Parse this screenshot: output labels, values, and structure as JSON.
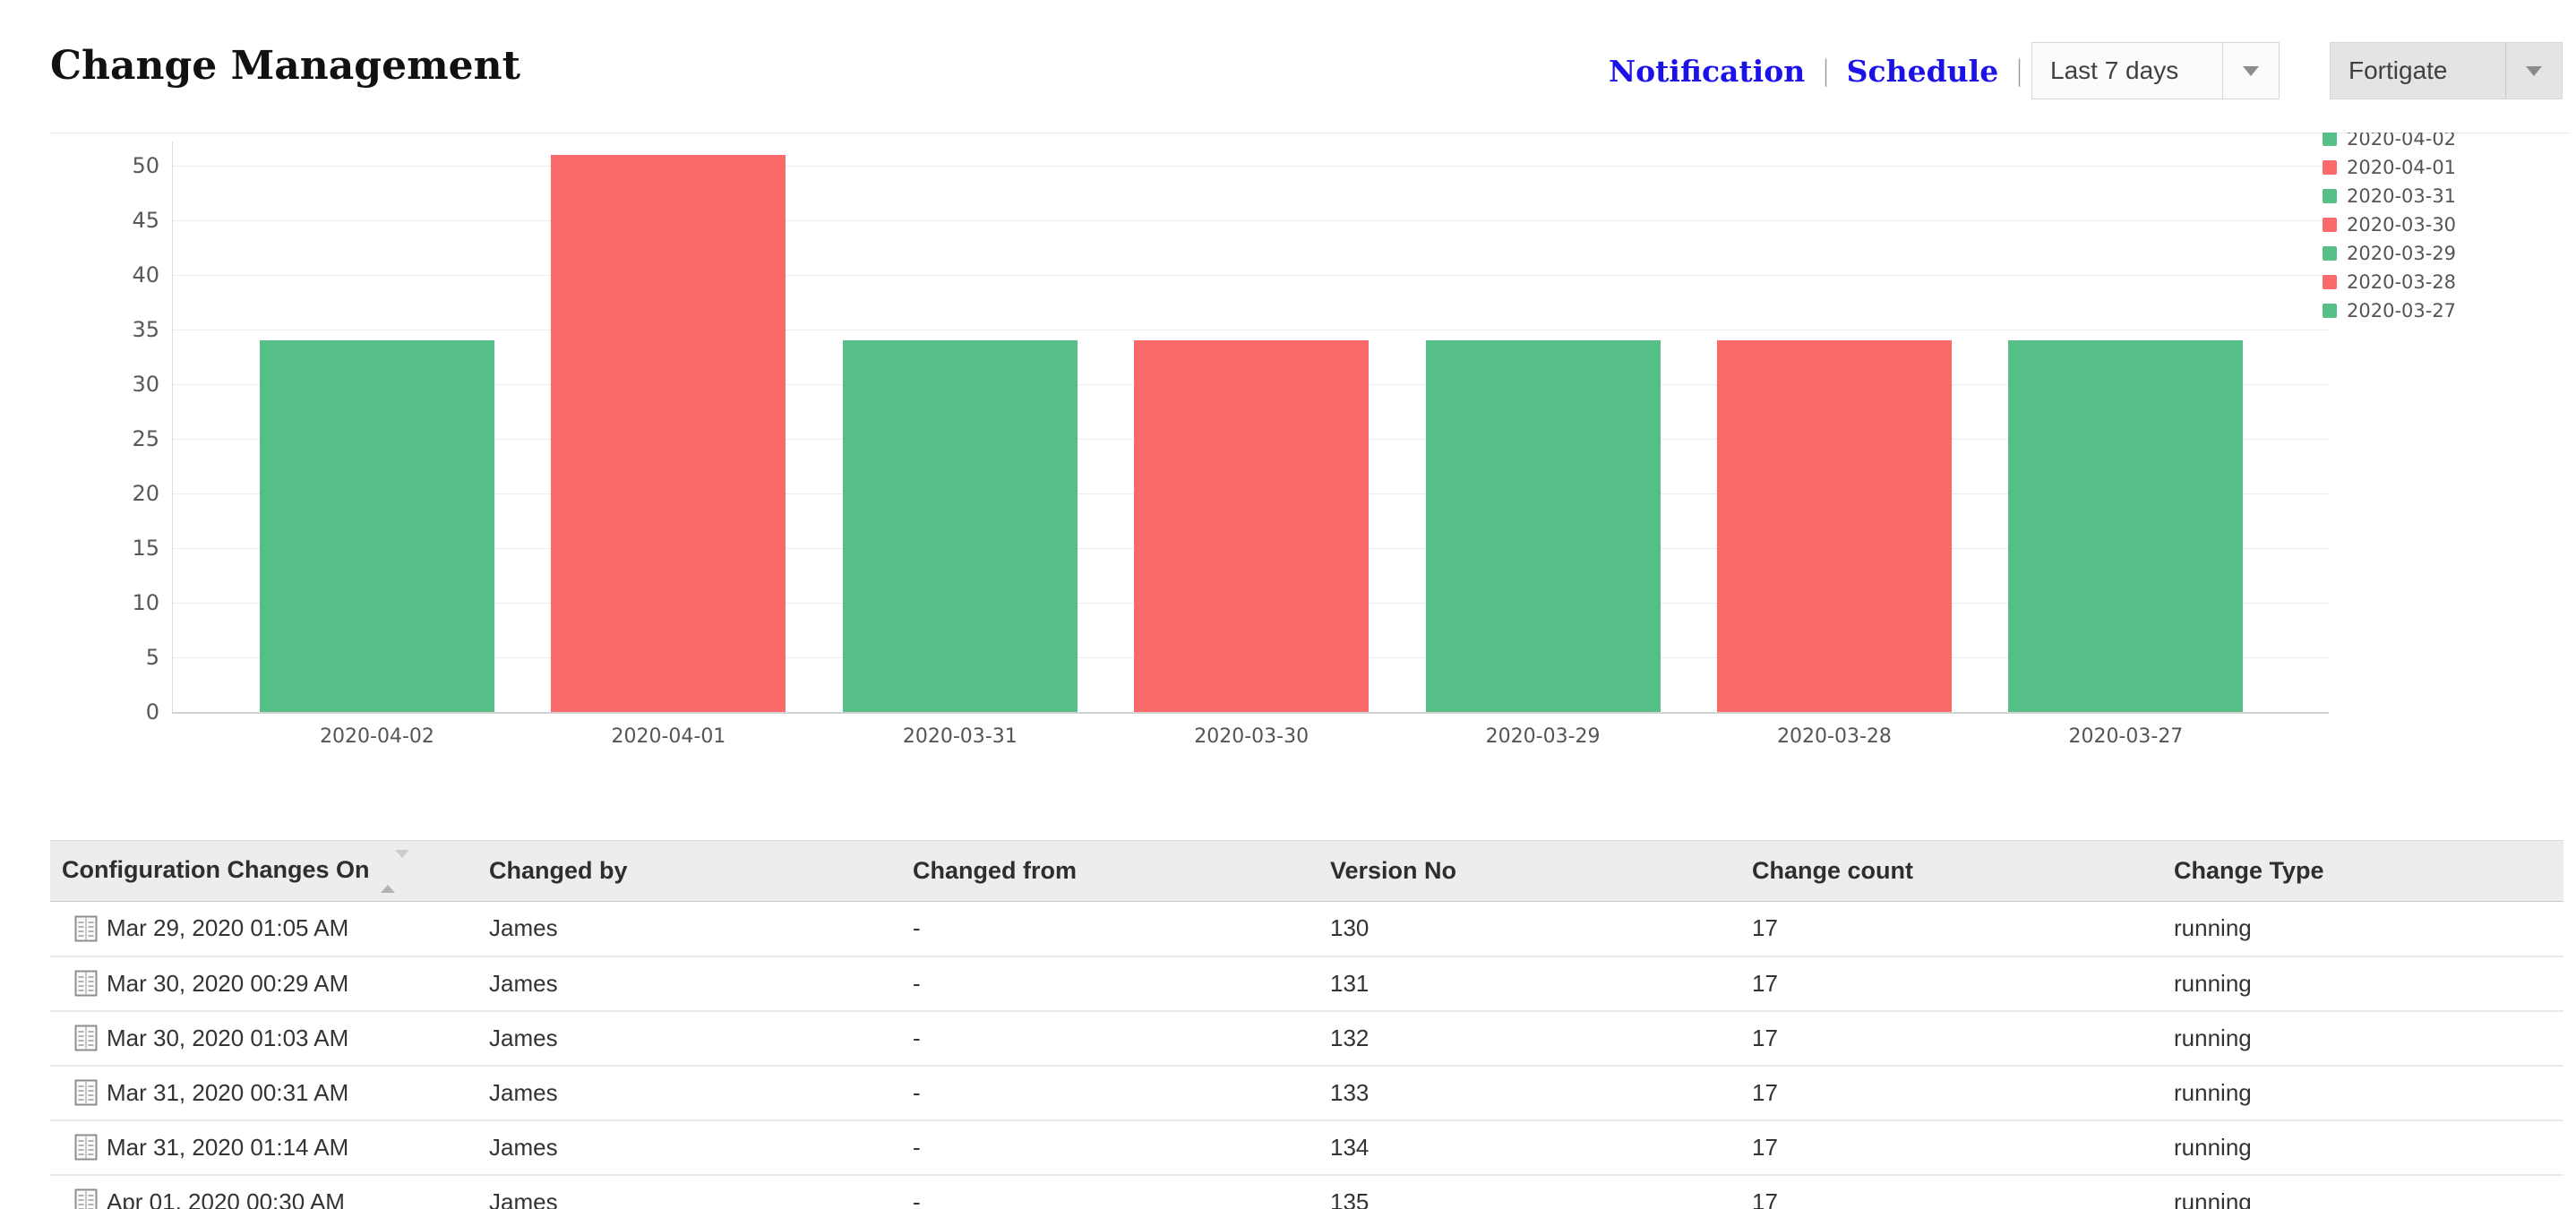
{
  "header": {
    "title": "Change Management",
    "links": [
      {
        "label": "Notification"
      },
      {
        "label": "Schedule"
      }
    ],
    "separator": "|",
    "period_select": {
      "value": "Last 7 days"
    },
    "device_select": {
      "value": "Fortigate"
    }
  },
  "colors": {
    "link": "#1c12e8",
    "bar_green": "#56BF87",
    "bar_red": "#FA6A6A",
    "table_header_bg": "#EDEDED"
  },
  "chart_data": {
    "type": "bar",
    "title": "",
    "xlabel": "",
    "ylabel": "",
    "categories": [
      "2020-04-02",
      "2020-04-01",
      "2020-03-31",
      "2020-03-30",
      "2020-03-29",
      "2020-03-28",
      "2020-03-27"
    ],
    "values": [
      34,
      51,
      34,
      34,
      34,
      34,
      34
    ],
    "colors": [
      "#56BF87",
      "#FA6A6A",
      "#56BF87",
      "#FA6A6A",
      "#56BF87",
      "#FA6A6A",
      "#56BF87"
    ],
    "yticks": [
      0,
      5,
      10,
      15,
      20,
      25,
      30,
      35,
      40,
      45,
      50
    ],
    "ylim": [
      0,
      52
    ],
    "grid": true,
    "legend_position": "right",
    "legend": [
      {
        "label": "2020-04-02",
        "color": "#56BF87"
      },
      {
        "label": "2020-04-01",
        "color": "#FA6A6A"
      },
      {
        "label": "2020-03-31",
        "color": "#56BF87"
      },
      {
        "label": "2020-03-30",
        "color": "#FA6A6A"
      },
      {
        "label": "2020-03-29",
        "color": "#56BF87"
      },
      {
        "label": "2020-03-28",
        "color": "#FA6A6A"
      },
      {
        "label": "2020-03-27",
        "color": "#56BF87"
      }
    ]
  },
  "table": {
    "columns": [
      "Configuration Changes On",
      "Changed by",
      "Changed from",
      "Version No",
      "Change count",
      "Change Type"
    ],
    "sorted_column": "Configuration Changes On",
    "rows": [
      {
        "changes_on": "Mar 29, 2020 01:05 AM",
        "changed_by": "James",
        "changed_from": "-",
        "version_no": "130",
        "change_count": "17",
        "change_type": "running"
      },
      {
        "changes_on": "Mar 30, 2020 00:29 AM",
        "changed_by": "James",
        "changed_from": "-",
        "version_no": "131",
        "change_count": "17",
        "change_type": "running"
      },
      {
        "changes_on": "Mar 30, 2020 01:03 AM",
        "changed_by": "James",
        "changed_from": "-",
        "version_no": "132",
        "change_count": "17",
        "change_type": "running"
      },
      {
        "changes_on": "Mar 31, 2020 00:31 AM",
        "changed_by": "James",
        "changed_from": "-",
        "version_no": "133",
        "change_count": "17",
        "change_type": "running"
      },
      {
        "changes_on": "Mar 31, 2020 01:14 AM",
        "changed_by": "James",
        "changed_from": "-",
        "version_no": "134",
        "change_count": "17",
        "change_type": "running"
      },
      {
        "changes_on": "Apr 01, 2020 00:30 AM",
        "changed_by": "James",
        "changed_from": "-",
        "version_no": "135",
        "change_count": "17",
        "change_type": "running"
      }
    ]
  }
}
